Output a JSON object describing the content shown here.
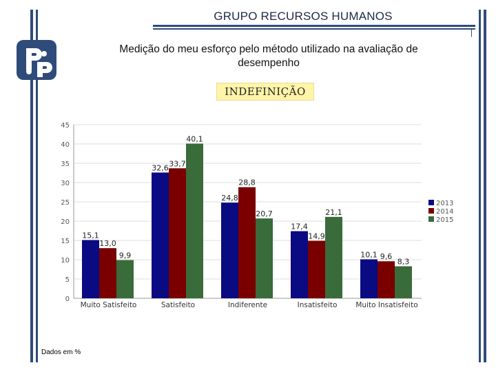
{
  "header": {
    "title": "GRUPO RECURSOS HUMANOS",
    "page_marker": "|"
  },
  "logo": {
    "icon": "rh-logo-icon",
    "color": "#2e4b7a"
  },
  "subtitle_line1": "Medição do meu esforço pelo método utilizado na avaliação de",
  "subtitle_line2": "desempenho",
  "banner": "INDEFINIÇÃO",
  "footnote": "Dados em %",
  "chart_data": {
    "type": "bar",
    "title": "Medição do meu esforço pelo método utilizado na avaliação de desempenho",
    "categories": [
      "Muito Satisfeito",
      "Satisfeito",
      "Indiferente",
      "Insatisfeito",
      "Muito Insatisfeito"
    ],
    "series": [
      {
        "name": "2013",
        "color": "#0a0a82",
        "values": [
          15.1,
          32.6,
          24.8,
          17.4,
          10.1
        ]
      },
      {
        "name": "2014",
        "color": "#7a0000",
        "values": [
          13.0,
          33.7,
          28.8,
          14.9,
          9.6
        ]
      },
      {
        "name": "2015",
        "color": "#3a6b3a",
        "values": [
          9.9,
          40.1,
          20.7,
          21.1,
          8.3
        ]
      }
    ],
    "value_labels": [
      [
        "15,1",
        "32,6",
        "24,8",
        "17,4",
        "10,1"
      ],
      [
        "13,0",
        "33,7",
        "28,8",
        "14,9",
        "9,6"
      ],
      [
        "9,9",
        "40,1",
        "20,7",
        "21,1",
        "8,3"
      ]
    ],
    "yticks": [
      "0",
      "5",
      "10",
      "15",
      "20",
      "25",
      "30",
      "35",
      "40",
      "45"
    ],
    "ylim": [
      0,
      45
    ],
    "xlabel": "",
    "ylabel": "",
    "grid": true,
    "legend": "right"
  }
}
